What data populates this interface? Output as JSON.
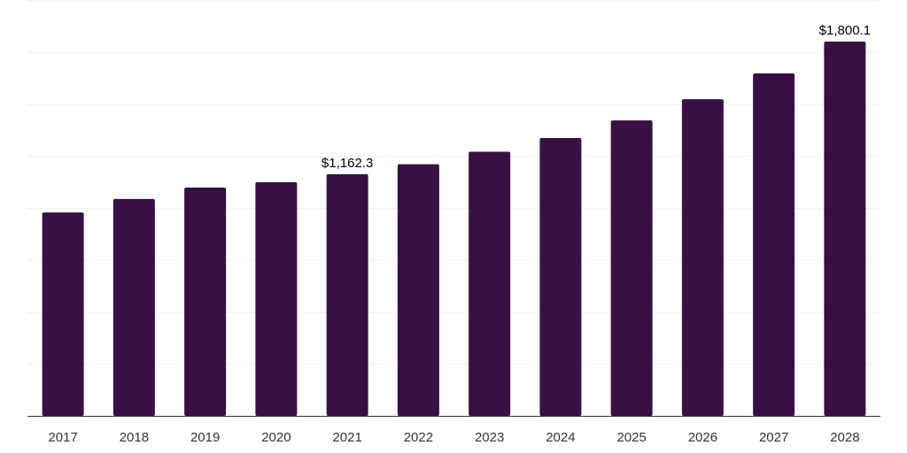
{
  "chart_data": {
    "type": "bar",
    "title": "",
    "xlabel": "",
    "ylabel": "",
    "categories": [
      "2017",
      "2018",
      "2019",
      "2020",
      "2021",
      "2022",
      "2023",
      "2024",
      "2025",
      "2026",
      "2027",
      "2028"
    ],
    "values": [
      978.0,
      1043.0,
      1098.0,
      1124.0,
      1162.3,
      1210.0,
      1270.0,
      1336.0,
      1421.0,
      1523.0,
      1647.0,
      1800.1
    ],
    "data_labels": [
      {
        "index": 4,
        "text": "$1,162.3"
      },
      {
        "index": 11,
        "text": "$1,800.1"
      }
    ],
    "ylim": [
      0,
      2000
    ],
    "grid": true,
    "legend": "none",
    "colors": {
      "bar": "#371146",
      "grid": "#eeeeee",
      "axis": "#333333",
      "tick_text": "#333333",
      "label_text": "#000000"
    }
  }
}
